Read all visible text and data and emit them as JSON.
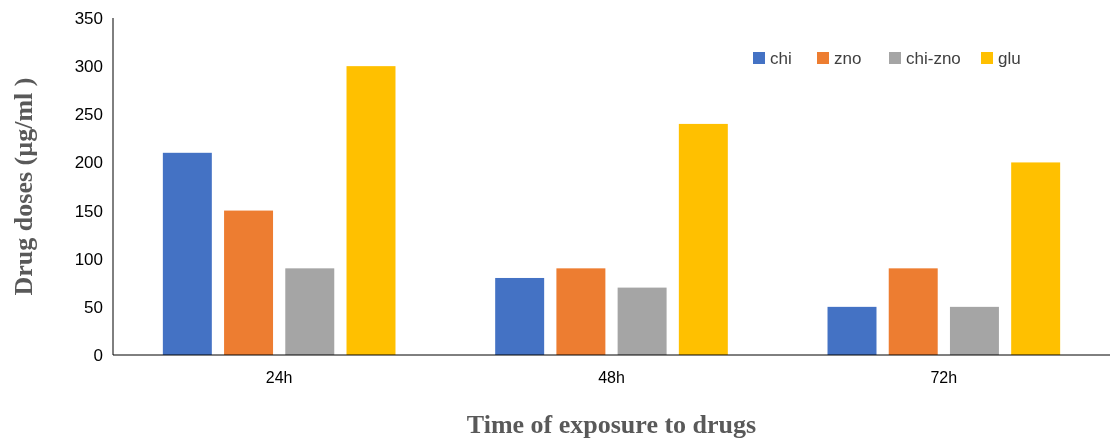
{
  "chart_data": {
    "type": "bar",
    "xlabel": "Time of exposure to drugs",
    "ylabel": "Drug doses (µg/ml )",
    "categories": [
      "24h",
      "48h",
      "72h"
    ],
    "series": [
      {
        "name": "chi",
        "color": "#4472c4",
        "values": [
          210,
          80,
          50
        ]
      },
      {
        "name": "zno",
        "color": "#ed7d31",
        "values": [
          150,
          90,
          90
        ]
      },
      {
        "name": "chi-zno",
        "color": "#a5a5a5",
        "values": [
          90,
          70,
          50
        ]
      },
      {
        "name": "glu",
        "color": "#ffc000",
        "values": [
          300,
          240,
          200
        ]
      }
    ],
    "ylim": [
      0,
      350
    ],
    "yticks": [
      0,
      50,
      100,
      150,
      200,
      250,
      300,
      350
    ],
    "grid": false,
    "legend": "top right"
  }
}
